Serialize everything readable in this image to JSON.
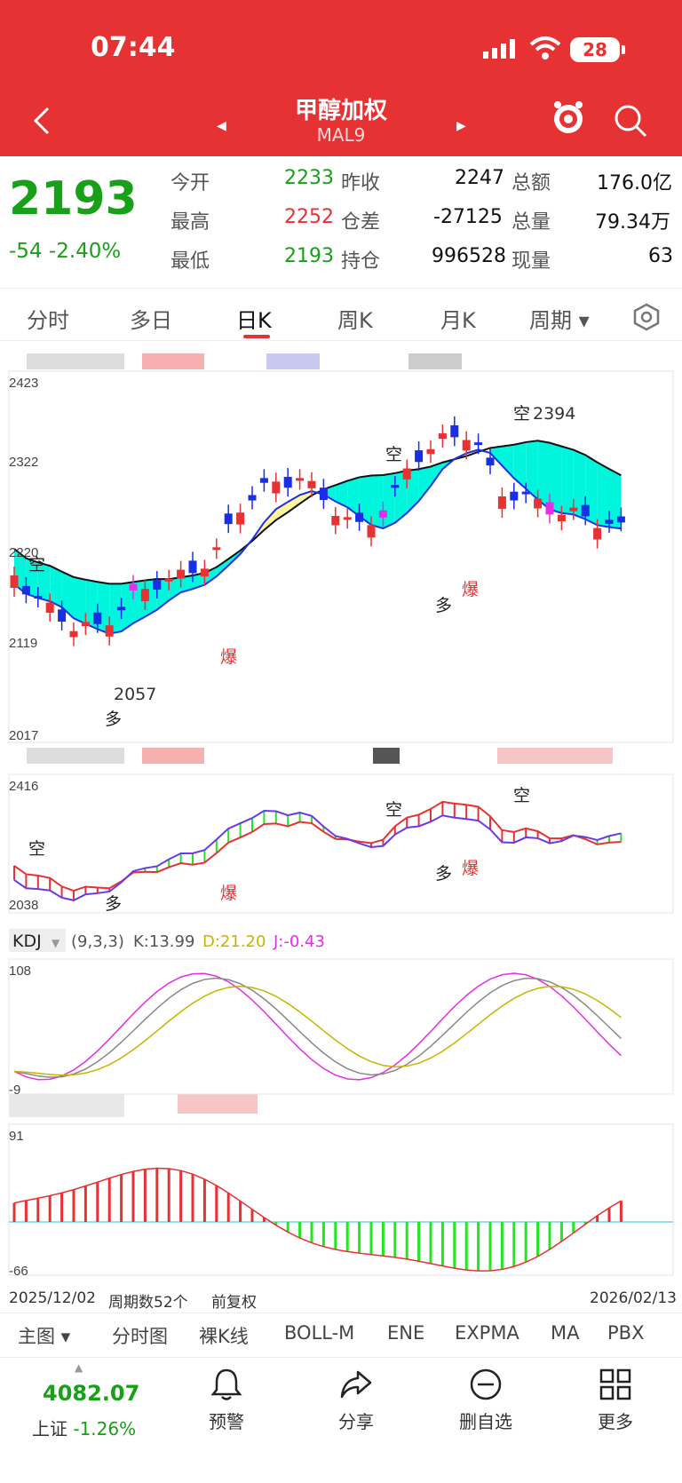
{
  "status": {
    "time": "07:44",
    "battery": "28"
  },
  "header": {
    "title": "甲醇加权",
    "code": "MAL9"
  },
  "quote": {
    "price": "2193",
    "change": "-54",
    "change_pct": "-2.40%",
    "rows": [
      [
        {
          "label": "今开",
          "value": "2233",
          "color": "green"
        },
        {
          "label": "昨收",
          "value": "2247",
          "color": "dark"
        },
        {
          "label": "总额",
          "value": "176.0亿",
          "color": "dark"
        }
      ],
      [
        {
          "label": "最高",
          "value": "2252",
          "color": "red"
        },
        {
          "label": "仓差",
          "value": "-27125",
          "color": "dark"
        },
        {
          "label": "总量",
          "value": "79.34万",
          "color": "dark"
        }
      ],
      [
        {
          "label": "最低",
          "value": "2193",
          "color": "green"
        },
        {
          "label": "持仓",
          "value": "996528",
          "color": "dark"
        },
        {
          "label": "现量",
          "value": "63",
          "color": "dark"
        }
      ]
    ]
  },
  "tabs": [
    "分时",
    "多日",
    "日K",
    "周K",
    "月K",
    "周期"
  ],
  "colors": {
    "up": "#e63232",
    "down": "#1a2ee6",
    "cyan": "#00f5dd",
    "yellow": "#fff59a",
    "green": "#18a018",
    "magenta": "#e62ee6"
  },
  "main_chart": {
    "y_labels": [
      "2423",
      "2322",
      "2220",
      "2119",
      "2017"
    ],
    "annotations": {
      "high_value": "2394",
      "low_value": "2057",
      "kong": "空",
      "duo": "多",
      "bao": "爆"
    }
  },
  "sub_chart": {
    "y_labels": [
      "2416",
      "2038"
    ]
  },
  "kdj": {
    "name": "KDJ",
    "params": "(9,3,3)",
    "k": "K:13.99",
    "d": "D:21.20",
    "j": "J:-0.43",
    "y_top": "108",
    "y_bottom": "-9"
  },
  "macd": {
    "y_top": "91",
    "y_bottom": "-66"
  },
  "footer": {
    "start_date": "2025/12/02",
    "period_count": "周期数52个",
    "adjust": "前复权",
    "end_date": "2026/02/13"
  },
  "indicators": [
    "主图",
    "分时图",
    "裸K线",
    "BOLL-M",
    "ENE",
    "EXPMA",
    "MA",
    "PBX"
  ],
  "bottom_nav": {
    "index_value": "4082.07",
    "index_name": "上证",
    "index_change": "-1.26%",
    "items": [
      "预警",
      "分享",
      "删自选",
      "更多"
    ]
  }
}
